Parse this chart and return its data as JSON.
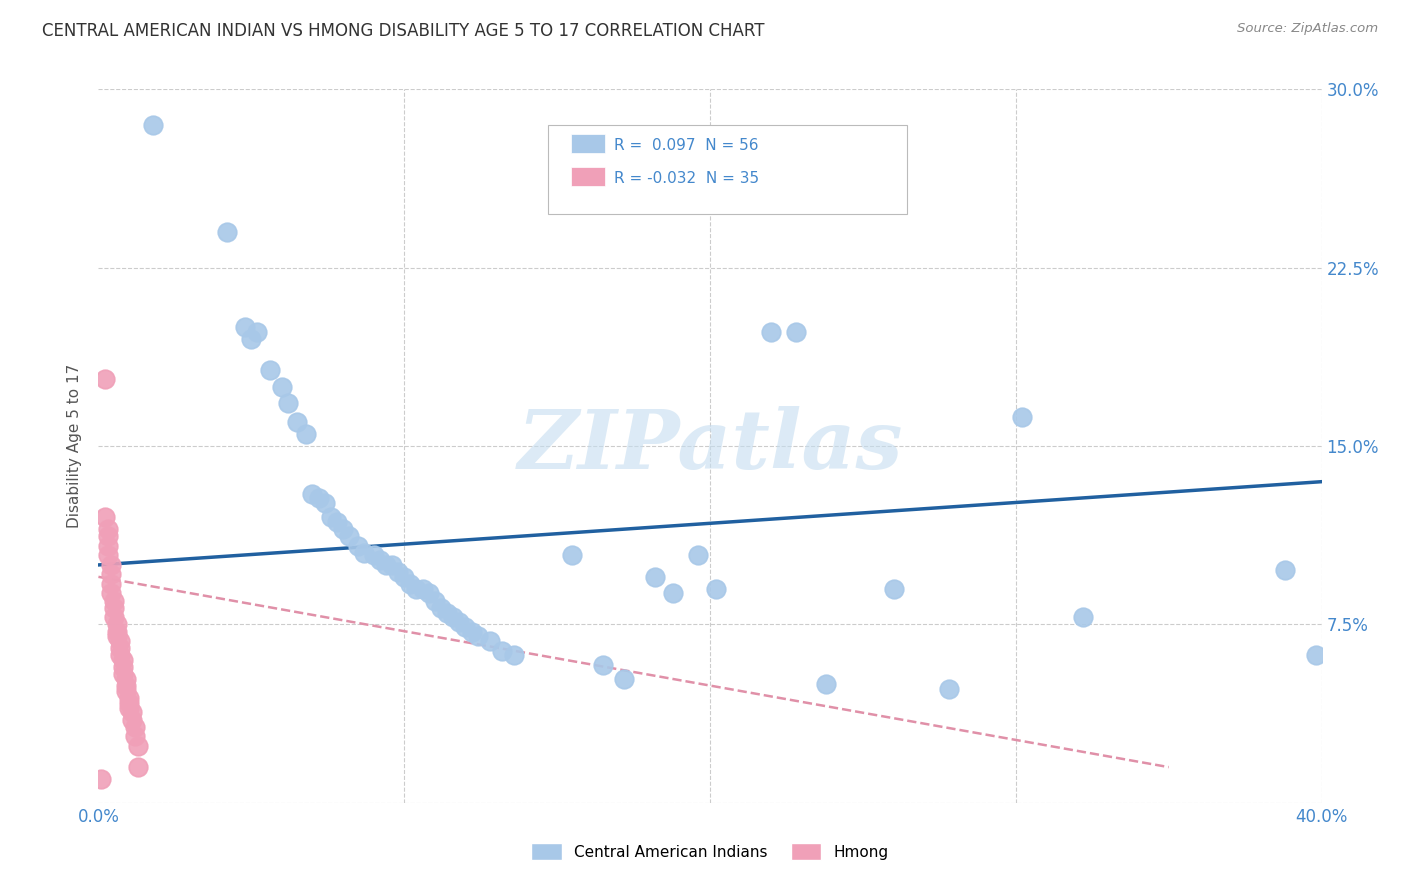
{
  "title": "CENTRAL AMERICAN INDIAN VS HMONG DISABILITY AGE 5 TO 17 CORRELATION CHART",
  "source": "Source: ZipAtlas.com",
  "ylabel": "Disability Age 5 to 17",
  "xlim": [
    0.0,
    0.4
  ],
  "ylim": [
    0.0,
    0.3
  ],
  "xticks": [
    0.0,
    0.1,
    0.2,
    0.3,
    0.4
  ],
  "yticks": [
    0.0,
    0.075,
    0.15,
    0.225,
    0.3
  ],
  "background_color": "#ffffff",
  "grid_color": "#cccccc",
  "watermark": "ZIPatlas",
  "blue_color": "#a8c8e8",
  "pink_color": "#f0a0b8",
  "blue_line_color": "#2060a0",
  "pink_line_color": "#e090a8",
  "blue_scatter": [
    [
      0.018,
      0.285
    ],
    [
      0.042,
      0.24
    ],
    [
      0.048,
      0.2
    ],
    [
      0.05,
      0.195
    ],
    [
      0.052,
      0.198
    ],
    [
      0.056,
      0.182
    ],
    [
      0.06,
      0.175
    ],
    [
      0.062,
      0.168
    ],
    [
      0.065,
      0.16
    ],
    [
      0.068,
      0.155
    ],
    [
      0.07,
      0.13
    ],
    [
      0.072,
      0.128
    ],
    [
      0.074,
      0.126
    ],
    [
      0.076,
      0.12
    ],
    [
      0.078,
      0.118
    ],
    [
      0.08,
      0.115
    ],
    [
      0.082,
      0.112
    ],
    [
      0.085,
      0.108
    ],
    [
      0.087,
      0.105
    ],
    [
      0.09,
      0.104
    ],
    [
      0.092,
      0.102
    ],
    [
      0.094,
      0.1
    ],
    [
      0.096,
      0.1
    ],
    [
      0.098,
      0.097
    ],
    [
      0.1,
      0.095
    ],
    [
      0.102,
      0.092
    ],
    [
      0.104,
      0.09
    ],
    [
      0.106,
      0.09
    ],
    [
      0.108,
      0.088
    ],
    [
      0.11,
      0.085
    ],
    [
      0.112,
      0.082
    ],
    [
      0.114,
      0.08
    ],
    [
      0.116,
      0.078
    ],
    [
      0.118,
      0.076
    ],
    [
      0.12,
      0.074
    ],
    [
      0.122,
      0.072
    ],
    [
      0.124,
      0.07
    ],
    [
      0.128,
      0.068
    ],
    [
      0.132,
      0.064
    ],
    [
      0.136,
      0.062
    ],
    [
      0.155,
      0.104
    ],
    [
      0.165,
      0.058
    ],
    [
      0.172,
      0.052
    ],
    [
      0.182,
      0.095
    ],
    [
      0.188,
      0.088
    ],
    [
      0.196,
      0.104
    ],
    [
      0.202,
      0.09
    ],
    [
      0.22,
      0.198
    ],
    [
      0.228,
      0.198
    ],
    [
      0.238,
      0.05
    ],
    [
      0.26,
      0.09
    ],
    [
      0.278,
      0.048
    ],
    [
      0.302,
      0.162
    ],
    [
      0.322,
      0.078
    ],
    [
      0.388,
      0.098
    ],
    [
      0.398,
      0.062
    ]
  ],
  "pink_scatter": [
    [
      0.002,
      0.178
    ],
    [
      0.002,
      0.12
    ],
    [
      0.003,
      0.115
    ],
    [
      0.003,
      0.112
    ],
    [
      0.003,
      0.108
    ],
    [
      0.003,
      0.104
    ],
    [
      0.004,
      0.1
    ],
    [
      0.004,
      0.096
    ],
    [
      0.004,
      0.092
    ],
    [
      0.004,
      0.088
    ],
    [
      0.005,
      0.085
    ],
    [
      0.005,
      0.082
    ],
    [
      0.005,
      0.078
    ],
    [
      0.006,
      0.075
    ],
    [
      0.006,
      0.072
    ],
    [
      0.006,
      0.07
    ],
    [
      0.007,
      0.068
    ],
    [
      0.007,
      0.065
    ],
    [
      0.007,
      0.062
    ],
    [
      0.008,
      0.06
    ],
    [
      0.008,
      0.057
    ],
    [
      0.008,
      0.054
    ],
    [
      0.009,
      0.052
    ],
    [
      0.009,
      0.049
    ],
    [
      0.009,
      0.047
    ],
    [
      0.01,
      0.044
    ],
    [
      0.01,
      0.042
    ],
    [
      0.01,
      0.04
    ],
    [
      0.011,
      0.038
    ],
    [
      0.011,
      0.035
    ],
    [
      0.012,
      0.032
    ],
    [
      0.012,
      0.028
    ],
    [
      0.013,
      0.024
    ],
    [
      0.013,
      0.015
    ],
    [
      0.001,
      0.01
    ]
  ],
  "blue_trend_x": [
    0.0,
    0.4
  ],
  "blue_trend_y": [
    0.1,
    0.135
  ],
  "pink_trend_x": [
    0.0,
    0.35
  ],
  "pink_trend_y": [
    0.095,
    0.015
  ]
}
